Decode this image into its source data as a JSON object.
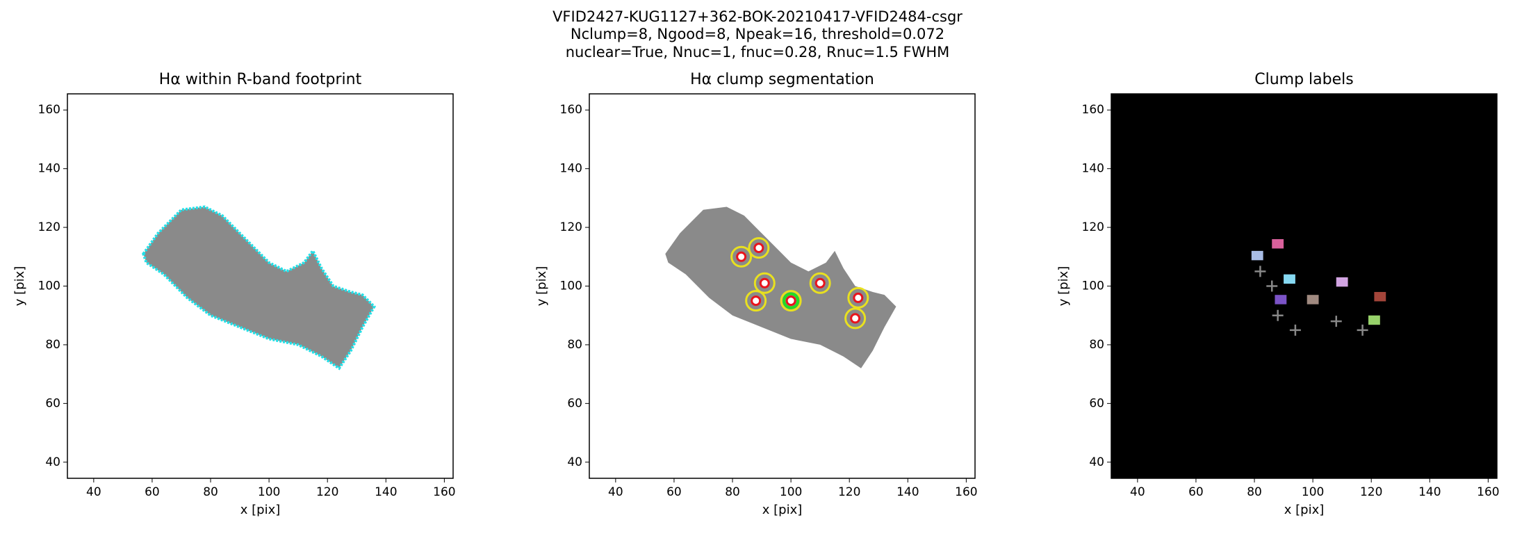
{
  "suptitle": [
    "VFID2427-KUG1127+362-BOK-20210417-VFID2484-csgr",
    "Nclump=8, Ngood=8, Npeak=16, threshold=0.072",
    "nuclear=True, Nnuc=1, fnuc=0.28, Rnuc=1.5 FWHM"
  ],
  "chart_data": [
    {
      "type": "image",
      "title": "Hα within R-band footprint",
      "xlabel": "x [pix]",
      "ylabel": "y [pix]",
      "xlim": [
        31,
        163
      ],
      "ylim": [
        34.5,
        165.5
      ],
      "xticks": [
        40,
        60,
        80,
        100,
        120,
        140,
        160
      ],
      "yticks": [
        40,
        60,
        80,
        100,
        120,
        140,
        160
      ],
      "background": "#ffffff",
      "footprint": {
        "fill": "#8a8a8a",
        "outline": "#22e0e8",
        "x": [
          57,
          62,
          70,
          78,
          84,
          88,
          94,
          100,
          106,
          112,
          115,
          118,
          122,
          128,
          132,
          136,
          132,
          128,
          124,
          118,
          110,
          100,
          90,
          80,
          72,
          64,
          58
        ],
        "y": [
          111,
          118,
          126,
          127,
          124,
          120,
          114,
          108,
          105,
          108,
          112,
          106,
          100,
          98,
          97,
          93,
          86,
          78,
          72,
          76,
          80,
          82,
          86,
          90,
          96,
          104,
          108
        ]
      }
    },
    {
      "type": "image",
      "title": "Hα clump segmentation",
      "xlabel": "x [pix]",
      "ylabel": "y [pix]",
      "xlim": [
        31,
        163
      ],
      "ylim": [
        34.5,
        165.5
      ],
      "xticks": [
        40,
        60,
        80,
        100,
        120,
        140,
        160
      ],
      "yticks": [
        40,
        60,
        80,
        100,
        120,
        140,
        160
      ],
      "background": "#ffffff",
      "footprint": {
        "fill": "#8a8a8a",
        "x": [
          57,
          62,
          70,
          78,
          84,
          88,
          94,
          100,
          106,
          112,
          115,
          118,
          122,
          128,
          132,
          136,
          132,
          128,
          124,
          118,
          110,
          100,
          90,
          80,
          72,
          64,
          58
        ],
        "y": [
          111,
          118,
          126,
          127,
          124,
          120,
          114,
          108,
          105,
          108,
          112,
          106,
          100,
          98,
          97,
          93,
          86,
          78,
          72,
          76,
          80,
          82,
          86,
          90,
          96,
          104,
          108
        ]
      },
      "peaks": {
        "x": [
          83,
          89,
          91,
          88,
          100,
          110,
          123,
          122
        ],
        "y": [
          110,
          113,
          101,
          95,
          95,
          101,
          96,
          89
        ],
        "colors": [
          "#e8141c",
          "#e8141c",
          "#e8141c",
          "#e8141c",
          "#e8141c",
          "#e8141c",
          "#e8141c",
          "#e8141c"
        ],
        "contour": "#e8e020",
        "nucleus": "#22dd22"
      }
    },
    {
      "type": "image",
      "title": "Clump labels",
      "xlabel": "x [pix]",
      "ylabel": "y [pix]",
      "xlim": [
        31,
        163
      ],
      "ylim": [
        34.5,
        165.5
      ],
      "xticks": [
        40,
        60,
        80,
        100,
        120,
        140,
        160
      ],
      "yticks": [
        40,
        60,
        80,
        100,
        120,
        140,
        160
      ],
      "background": "#000000",
      "labels": {
        "x": [
          88,
          81,
          92,
          89,
          100,
          110,
          123,
          121
        ],
        "y": [
          114,
          110,
          102,
          95,
          95,
          101,
          96,
          88
        ],
        "colors": [
          "#d9619c",
          "#a9bde6",
          "#86d9f2",
          "#7b53c6",
          "#a08a80",
          "#d2a4e2",
          "#a3453a",
          "#97d26a"
        ]
      },
      "crosses": {
        "x": [
          82,
          86,
          88,
          94,
          108,
          117
        ],
        "y": [
          105,
          100,
          90,
          85,
          88,
          85
        ],
        "color": "#888888"
      }
    }
  ]
}
